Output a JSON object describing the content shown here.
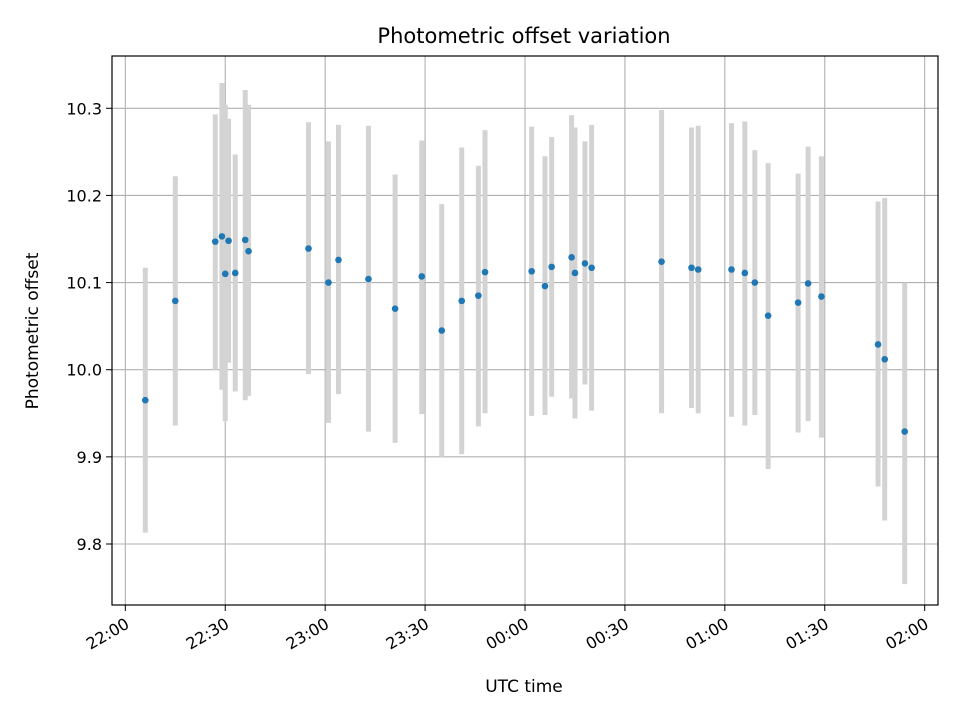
{
  "chart_data": {
    "type": "scatter",
    "title": "Photometric offset variation",
    "xlabel": "UTC time",
    "ylabel": "Photometric offset",
    "grid": true,
    "xlim": [
      "21:56",
      "02:04"
    ],
    "ylim": [
      9.73,
      10.36
    ],
    "x_ticks": [
      "22:00",
      "22:30",
      "23:00",
      "23:30",
      "00:00",
      "00:30",
      "01:00",
      "01:30",
      "02:00"
    ],
    "y_ticks": [
      9.8,
      9.9,
      10.0,
      10.1,
      10.2,
      10.3
    ],
    "y_tick_labels": [
      "9.8",
      "9.9",
      "10.0",
      "10.1",
      "10.2",
      "10.3"
    ],
    "colors": {
      "point": "#1f77b4",
      "error_bar": "#d3d3d3",
      "grid": "#b0b0b0",
      "axes": "#000000"
    },
    "points": [
      {
        "x": "22:06",
        "y": 9.965,
        "err_low": 9.813,
        "err_high": 10.117
      },
      {
        "x": "22:15",
        "y": 10.079,
        "err_low": 9.936,
        "err_high": 10.222
      },
      {
        "x": "22:27",
        "y": 10.147,
        "err_low": 10.0,
        "err_high": 10.293
      },
      {
        "x": "22:29",
        "y": 10.153,
        "err_low": 9.977,
        "err_high": 10.329
      },
      {
        "x": "22:30",
        "y": 10.11,
        "err_low": 9.941,
        "err_high": 10.304
      },
      {
        "x": "22:31",
        "y": 10.148,
        "err_low": 10.008,
        "err_high": 10.288
      },
      {
        "x": "22:33",
        "y": 10.111,
        "err_low": 9.975,
        "err_high": 10.247
      },
      {
        "x": "22:36",
        "y": 10.149,
        "err_low": 9.965,
        "err_high": 10.321
      },
      {
        "x": "22:37",
        "y": 10.136,
        "err_low": 9.97,
        "err_high": 10.304
      },
      {
        "x": "22:55",
        "y": 10.139,
        "err_low": 9.995,
        "err_high": 10.284
      },
      {
        "x": "23:01",
        "y": 10.1,
        "err_low": 9.939,
        "err_high": 10.262
      },
      {
        "x": "23:04",
        "y": 10.126,
        "err_low": 9.972,
        "err_high": 10.281
      },
      {
        "x": "23:13",
        "y": 10.104,
        "err_low": 9.929,
        "err_high": 10.28
      },
      {
        "x": "23:21",
        "y": 10.07,
        "err_low": 9.916,
        "err_high": 10.224
      },
      {
        "x": "23:29",
        "y": 10.107,
        "err_low": 9.949,
        "err_high": 10.263
      },
      {
        "x": "23:35",
        "y": 10.045,
        "err_low": 9.9,
        "err_high": 10.19
      },
      {
        "x": "23:41",
        "y": 10.079,
        "err_low": 9.903,
        "err_high": 10.255
      },
      {
        "x": "23:46",
        "y": 10.085,
        "err_low": 9.935,
        "err_high": 10.234
      },
      {
        "x": "23:48",
        "y": 10.112,
        "err_low": 9.95,
        "err_high": 10.275
      },
      {
        "x": "00:02",
        "y": 10.113,
        "err_low": 9.947,
        "err_high": 10.279
      },
      {
        "x": "00:06",
        "y": 10.096,
        "err_low": 9.948,
        "err_high": 10.245
      },
      {
        "x": "00:08",
        "y": 10.118,
        "err_low": 9.969,
        "err_high": 10.267
      },
      {
        "x": "00:14",
        "y": 10.129,
        "err_low": 9.967,
        "err_high": 10.292
      },
      {
        "x": "00:15",
        "y": 10.111,
        "err_low": 9.944,
        "err_high": 10.278
      },
      {
        "x": "00:18",
        "y": 10.122,
        "err_low": 9.983,
        "err_high": 10.262
      },
      {
        "x": "00:20",
        "y": 10.117,
        "err_low": 9.953,
        "err_high": 10.281
      },
      {
        "x": "00:41",
        "y": 10.124,
        "err_low": 9.95,
        "err_high": 10.298
      },
      {
        "x": "00:50",
        "y": 10.117,
        "err_low": 9.956,
        "err_high": 10.278
      },
      {
        "x": "00:52",
        "y": 10.115,
        "err_low": 9.95,
        "err_high": 10.28
      },
      {
        "x": "01:02",
        "y": 10.115,
        "err_low": 9.946,
        "err_high": 10.283
      },
      {
        "x": "01:06",
        "y": 10.111,
        "err_low": 9.936,
        "err_high": 10.285
      },
      {
        "x": "01:09",
        "y": 10.1,
        "err_low": 9.948,
        "err_high": 10.252
      },
      {
        "x": "01:13",
        "y": 10.062,
        "err_low": 9.886,
        "err_high": 10.237
      },
      {
        "x": "01:22",
        "y": 10.077,
        "err_low": 9.928,
        "err_high": 10.225
      },
      {
        "x": "01:25",
        "y": 10.099,
        "err_low": 9.941,
        "err_high": 10.256
      },
      {
        "x": "01:29",
        "y": 10.084,
        "err_low": 9.922,
        "err_high": 10.245
      },
      {
        "x": "01:46",
        "y": 10.029,
        "err_low": 9.866,
        "err_high": 10.193
      },
      {
        "x": "01:48",
        "y": 10.012,
        "err_low": 9.827,
        "err_high": 10.197
      },
      {
        "x": "01:54",
        "y": 9.929,
        "err_low": 9.754,
        "err_high": 10.1
      }
    ]
  }
}
